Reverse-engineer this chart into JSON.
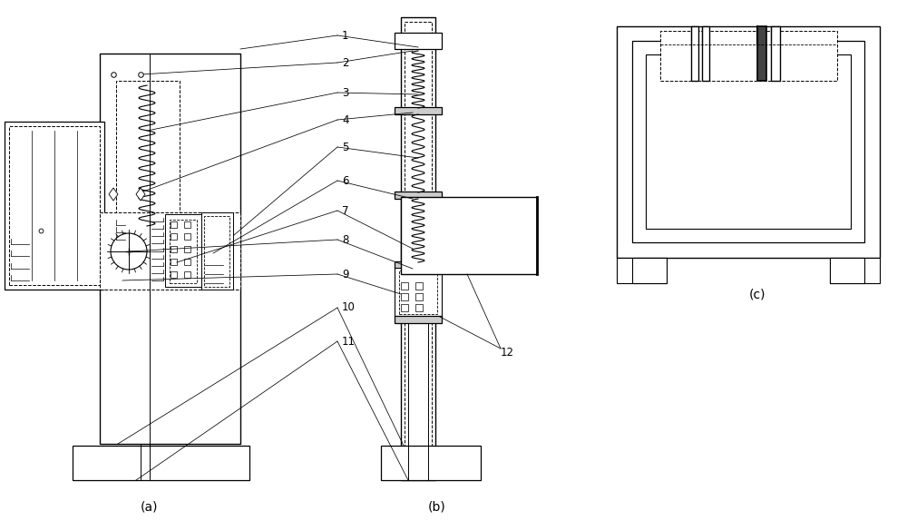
{
  "bg_color": "#ffffff",
  "lc": "#000000",
  "fig_width": 10.0,
  "fig_height": 5.74,
  "label_a": "(a)",
  "label_b": "(b)",
  "label_c": "(c)"
}
